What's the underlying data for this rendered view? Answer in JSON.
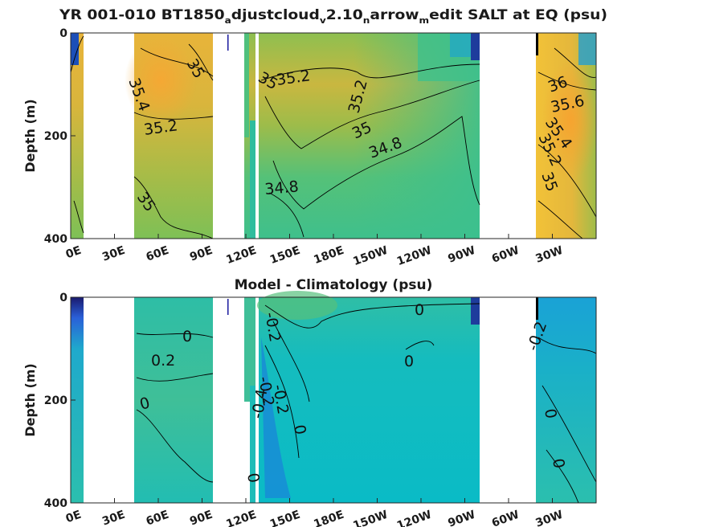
{
  "chart_data": [
    {
      "type": "heatmap",
      "title": "YR 001-010 BT1850_adjustcloud_v2.10_narrow_medit SALT at EQ (psu)",
      "title_parts": [
        {
          "text": "YR 001-010 BT1850",
          "sub": false
        },
        {
          "text": "a",
          "sub": true
        },
        {
          "text": "djustcloud",
          "sub": false
        },
        {
          "text": "v",
          "sub": true
        },
        {
          "text": "2.10",
          "sub": false
        },
        {
          "text": "n",
          "sub": true
        },
        {
          "text": "arrow",
          "sub": false
        },
        {
          "text": "m",
          "sub": true
        },
        {
          "text": "edit SALT at EQ (psu)",
          "sub": false
        }
      ],
      "ylabel": "Depth (m)",
      "ylim": [
        400,
        0
      ],
      "yticks": [
        "0",
        "200",
        "400"
      ],
      "xlim": [
        0,
        360
      ],
      "xticks": [
        "0E",
        "30E",
        "60E",
        "90E",
        "120E",
        "150E",
        "180E",
        "150W",
        "120W",
        "90W",
        "60W",
        "30W"
      ],
      "land_gaps_deg_east": [
        [
          5,
          42
        ],
        [
          95,
          118
        ],
        [
          130,
          133
        ],
        [
          283,
          303
        ]
      ],
      "contour_labels": [
        "35.4",
        "35",
        "35.2",
        "35",
        "35.2",
        "35.2",
        "35",
        "34.8",
        "34.8",
        "35",
        "36",
        "35.6",
        "35.4",
        "35.2",
        "35"
      ],
      "colormap": "parula"
    },
    {
      "type": "heatmap",
      "title": "Model - Climatology (psu)",
      "ylabel": "Depth (m)",
      "ylim": [
        400,
        0
      ],
      "yticks": [
        "0",
        "200",
        "400"
      ],
      "xlim": [
        0,
        360
      ],
      "xticks": [
        "0E",
        "30E",
        "60E",
        "90E",
        "120E",
        "150E",
        "180E",
        "150W",
        "120W",
        "90W",
        "60W",
        "30W"
      ],
      "land_gaps_deg_east": [
        [
          5,
          42
        ],
        [
          95,
          118
        ],
        [
          130,
          133
        ],
        [
          283,
          303
        ]
      ],
      "contour_labels": [
        "0",
        "0.2",
        "0",
        "-0.2",
        "-0.2",
        "-0.2",
        "-0.4",
        "0",
        "0",
        "0",
        "0",
        "-0.2",
        "0",
        "0"
      ],
      "colormap": "parula"
    }
  ]
}
